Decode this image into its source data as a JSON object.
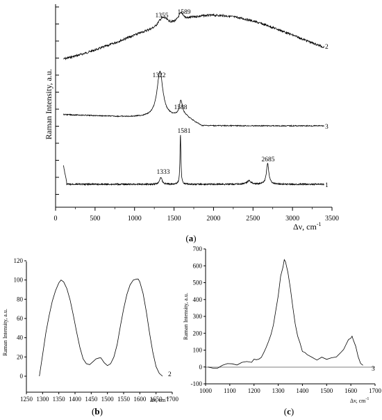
{
  "colors": {
    "line": "#000000",
    "background": "#ffffff"
  },
  "panels": {
    "a": {
      "label_text": "(a)",
      "label_letter": "a"
    },
    "b": {
      "label_text": "(b)",
      "label_letter": "b"
    },
    "c": {
      "label_text": "(c)",
      "label_letter": "c"
    }
  },
  "chart_data": [
    {
      "type": "line",
      "id": "a",
      "xlabel": "Δν, cm",
      "xlabel_sup": "-1",
      "ylabel": "Raman Intensity, a.u.",
      "xlim": [
        0,
        3500
      ],
      "x_ticks": [
        "0",
        "500",
        "1000",
        "1500",
        "2000",
        "2500",
        "3000",
        "3500"
      ],
      "y_tick_labels": "none",
      "series": [
        {
          "name": "2",
          "peaks": [
            {
              "x": 1355,
              "label": "1355"
            },
            {
              "x": 1589,
              "label": "1589"
            }
          ]
        },
        {
          "name": "3",
          "peaks": [
            {
              "x": 1322,
              "label": "1322"
            },
            {
              "x": 1588,
              "label": "1588"
            }
          ]
        },
        {
          "name": "1",
          "peaks": [
            {
              "x": 1333,
              "label": "1333"
            },
            {
              "x": 1581,
              "label": "1581"
            },
            {
              "x": 2685,
              "label": "2685"
            }
          ]
        }
      ]
    },
    {
      "type": "line",
      "id": "b",
      "xlabel": "Δv, cm",
      "xlabel_sup": "-1",
      "ylabel": "Raman Intensity, a.u.",
      "xlim": [
        1250,
        1700
      ],
      "ylim": [
        0,
        120
      ],
      "x_ticks": [
        "1250",
        "1300",
        "1350",
        "1400",
        "1450",
        "1500",
        "1550",
        "1600",
        "1650",
        "1700"
      ],
      "y_ticks": [
        "0",
        "20",
        "40",
        "60",
        "80",
        "100",
        "120"
      ],
      "series": [
        {
          "name": "2",
          "x": [
            1290,
            1300,
            1310,
            1320,
            1330,
            1340,
            1350,
            1357,
            1365,
            1375,
            1385,
            1395,
            1405,
            1415,
            1425,
            1435,
            1445,
            1455,
            1465,
            1475,
            1480,
            1490,
            1500,
            1510,
            1520,
            1530,
            1540,
            1550,
            1560,
            1570,
            1580,
            1590,
            1595,
            1600,
            1610,
            1620,
            1630,
            1640,
            1650,
            1660,
            1670
          ],
          "y": [
            0,
            22,
            45,
            63,
            78,
            89,
            97,
            100,
            98,
            91,
            79,
            63,
            46,
            30,
            18,
            13,
            12,
            15,
            18,
            19,
            19,
            14,
            11,
            13,
            20,
            33,
            52,
            70,
            85,
            95,
            100,
            101,
            101,
            98,
            86,
            67,
            45,
            25,
            10,
            3,
            0
          ]
        }
      ]
    },
    {
      "type": "line",
      "id": "c",
      "xlabel": "Δv, cm",
      "xlabel_sup": "-1",
      "ylabel": "Raman Intensity, a.u.",
      "xlim": [
        1000,
        1700
      ],
      "ylim": [
        -100,
        700
      ],
      "x_ticks": [
        "1000",
        "1100",
        "1200",
        "1300",
        "1400",
        "1500",
        "1600",
        "1700"
      ],
      "y_ticks": [
        "-100",
        "0",
        "100",
        "200",
        "300",
        "400",
        "500",
        "600",
        "700"
      ],
      "series": [
        {
          "name": "3",
          "x": [
            1010,
            1030,
            1050,
            1070,
            1090,
            1110,
            1130,
            1150,
            1170,
            1190,
            1200,
            1210,
            1220,
            1230,
            1240,
            1250,
            1260,
            1270,
            1280,
            1290,
            1300,
            1310,
            1320,
            1325,
            1330,
            1340,
            1350,
            1360,
            1370,
            1380,
            1390,
            1400,
            1410,
            1420,
            1440,
            1460,
            1480,
            1500,
            1520,
            1540,
            1560,
            1570,
            1580,
            1590,
            1600,
            1605,
            1610,
            1620,
            1630,
            1640,
            1650
          ],
          "y": [
            0,
            -3,
            3,
            5,
            10,
            12,
            18,
            20,
            28,
            35,
            42,
            46,
            55,
            68,
            85,
            110,
            150,
            190,
            250,
            330,
            430,
            530,
            600,
            625,
            620,
            560,
            470,
            360,
            260,
            190,
            140,
            100,
            75,
            62,
            55,
            50,
            48,
            52,
            58,
            68,
            85,
            110,
            140,
            165,
            175,
            178,
            170,
            130,
            70,
            25,
            10
          ]
        }
      ]
    }
  ]
}
